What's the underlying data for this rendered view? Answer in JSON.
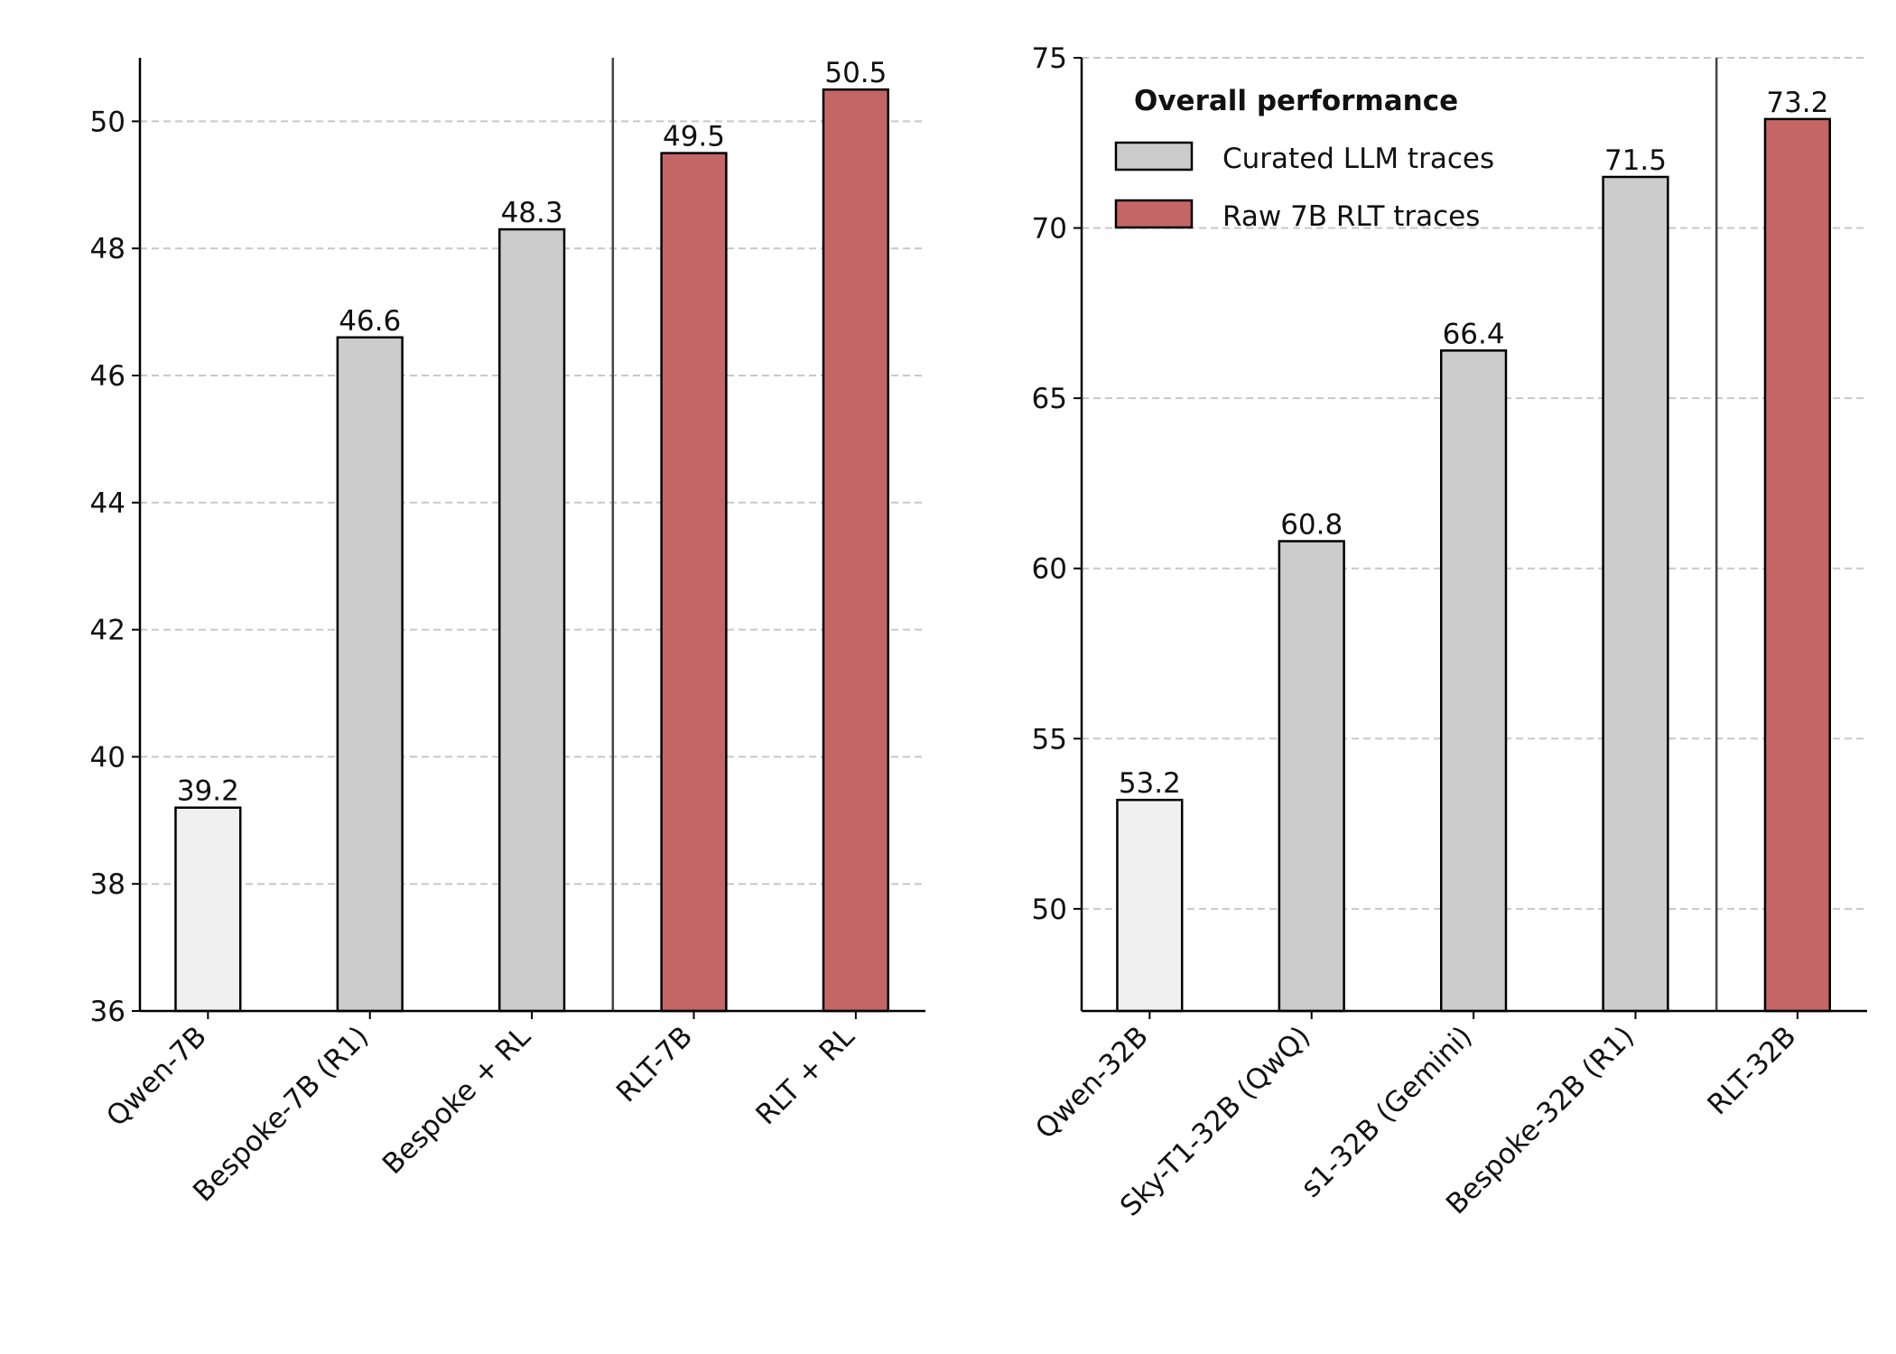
{
  "chart_data": [
    {
      "type": "bar",
      "categories": [
        "Qwen-7B",
        "Bespoke-7B (R1)",
        "Bespoke + RL",
        "RLT-7B",
        "RLT + RL"
      ],
      "values": [
        39.2,
        46.6,
        48.3,
        49.5,
        50.5
      ],
      "colors": [
        "#f0f0f0",
        "#cccccc",
        "#cccccc",
        "#c46666",
        "#c46666"
      ],
      "ylim": [
        36,
        51
      ],
      "yticks": [
        36,
        38,
        40,
        42,
        44,
        46,
        48,
        50
      ],
      "grid": true
    },
    {
      "type": "bar",
      "categories": [
        "Qwen-32B",
        "Sky-T1-32B (QwQ)",
        "s1-32B (Gemini)",
        "Bespoke-32B (R1)",
        "RLT-32B"
      ],
      "values": [
        53.2,
        60.8,
        66.4,
        71.5,
        73.2
      ],
      "colors": [
        "#f0f0f0",
        "#cccccc",
        "#cccccc",
        "#cccccc",
        "#c46666"
      ],
      "ylim": [
        47,
        75
      ],
      "yticks": [
        50,
        55,
        60,
        65,
        70,
        75
      ],
      "grid": true,
      "legend": {
        "title": "Overall performance",
        "position": "upper left",
        "entries": [
          {
            "name": "Curated LLM traces",
            "color": "#cccccc"
          },
          {
            "name": "Raw 7B RLT traces",
            "color": "#c46666"
          }
        ]
      }
    }
  ]
}
